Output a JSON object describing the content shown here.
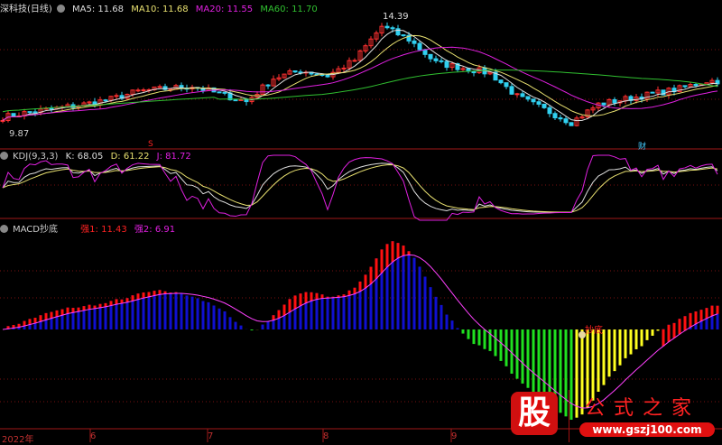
{
  "main": {
    "title": "深科技(日线)",
    "ma": [
      {
        "label": "MA5: 11.68",
        "color": "#dddddd"
      },
      {
        "label": "MA10: 11.68",
        "color": "#e8e070"
      },
      {
        "label": "MA20: 11.55",
        "color": "#e020e0"
      },
      {
        "label": "MA60: 11.70",
        "color": "#30c030"
      }
    ],
    "high_label": "14.39",
    "low_label": "9.87",
    "marker_s": "S",
    "marker_cai": "财"
  },
  "kdj": {
    "title": "KDJ(9,3,3)",
    "k": "K: 68.05",
    "d": "D: 61.22",
    "j": "J: 81.72"
  },
  "macd": {
    "title": "MACD抄底",
    "s1": "强1: 11.43",
    "s2": "强2: 6.91",
    "bottom_label": "抄底"
  },
  "axis": {
    "labels": [
      "2022年",
      "6",
      "7",
      "8",
      "9"
    ]
  },
  "watermark": {
    "logo_char": "股",
    "name": "公式之家",
    "url": "www.gszj100.com"
  },
  "colors": {
    "up": "#ff3030",
    "down": "#30d0f0",
    "grid": "#7a1010",
    "yellow": "#ffff20",
    "green": "#20e020",
    "blue": "#1010d0",
    "red": "#ff1010",
    "dea": "#ff40ff"
  },
  "chart_data": {
    "type": "candlestick",
    "price_range": [
      9.87,
      14.39
    ],
    "weekly_close": [
      10.5,
      10.7,
      10.84,
      11.0,
      11.2,
      11.5,
      11.6,
      11.7,
      11.4,
      11.1,
      12.0,
      12.3,
      12.1,
      12.7,
      14.0,
      13.5,
      12.6,
      12.4,
      12.2,
      11.3,
      10.8,
      10.3,
      11.0,
      11.2,
      11.4,
      11.6,
      11.9
    ],
    "indicators": [
      "MA5",
      "MA10",
      "MA20",
      "MA60",
      "KDJ(9,3,3)",
      "MACD"
    ]
  }
}
